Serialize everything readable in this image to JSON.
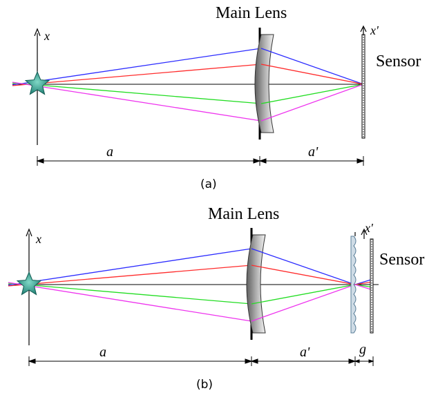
{
  "figure_a": {
    "lens_label": "Main Lens",
    "object_axis_label": "x",
    "image_axis_label": "x'",
    "sensor_label": "Sensor",
    "dist_object_label": "a",
    "dist_image_label": "a'",
    "caption": "(a)"
  },
  "figure_b": {
    "lens_label": "Main Lens",
    "object_axis_label": "x",
    "image_axis_label": "x'",
    "sensor_label": "Sensor",
    "dist_object_label": "a",
    "dist_image_label": "a'",
    "dist_gap_label": "g",
    "caption": "(b)"
  },
  "colors": {
    "ray_blue": "#2b2bff",
    "ray_red": "#ff2b2b",
    "ray_green": "#22dd22",
    "ray_magenta": "#ee33ee",
    "axis": "#000000",
    "star_fill": "#2a9d8f",
    "lens_dark": "#6a6a6a",
    "lens_light": "#e6e6e6",
    "microlens": "#9fb6c8"
  },
  "icons": {
    "object": "star-icon"
  }
}
